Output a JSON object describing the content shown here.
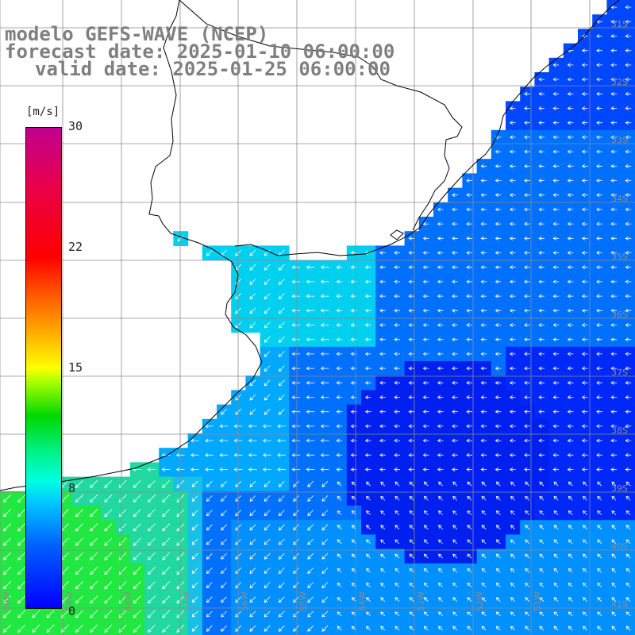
{
  "header": {
    "model": "modelo GEFS-WAVE (NCEP)",
    "forecast": "forecast date: 2025-01-10 06:00:00",
    "valid": "valid date: 2025-01-25 06:00:00"
  },
  "colorbar": {
    "unit": "[m/s]",
    "ticks": [
      "30",
      "22",
      "15",
      "8",
      "0"
    ],
    "range": [
      0,
      30
    ]
  },
  "grid": {
    "lat_labels": [
      "31S",
      "32S",
      "33S",
      "34S",
      "35S",
      "36S",
      "37S",
      "38S",
      "39S",
      "40S",
      "41S"
    ],
    "lon_labels": [
      "60W",
      "59W",
      "58W",
      "57W",
      "56W",
      "55W",
      "54W",
      "53W",
      "52W",
      "51W"
    ]
  },
  "colors": {
    "low_wind": "#0000ff",
    "moderate_wind": "#00c8ff",
    "strong_wind": "#00d800",
    "land": "#ffffff",
    "coastline": "#000000",
    "gridline": "#8c8c8c"
  },
  "map": {
    "variable": "10 m wind speed and direction",
    "region": "Rio de la Plata and SW Atlantic shelf",
    "field_type": "raster with vector arrows"
  }
}
